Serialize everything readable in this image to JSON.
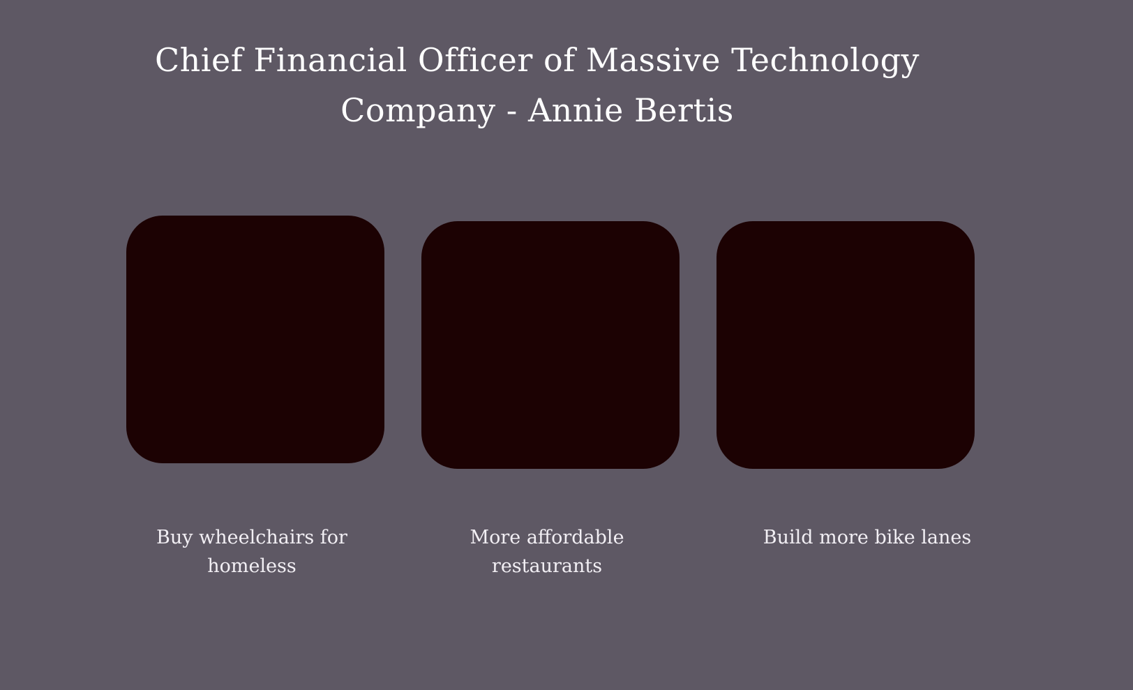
{
  "page": {
    "title": "Chief Financial Officer of Massive Technology Company - Annie Bertis",
    "background_color": "#5e5864",
    "card_color": "#1c0203",
    "title_color": "#ffffff",
    "caption_color": "#f2eff4"
  },
  "cards": [
    {
      "caption": "Buy wheelchairs for homeless"
    },
    {
      "caption": "More affordable restaurants"
    },
    {
      "caption": "Build more bike lanes"
    }
  ]
}
